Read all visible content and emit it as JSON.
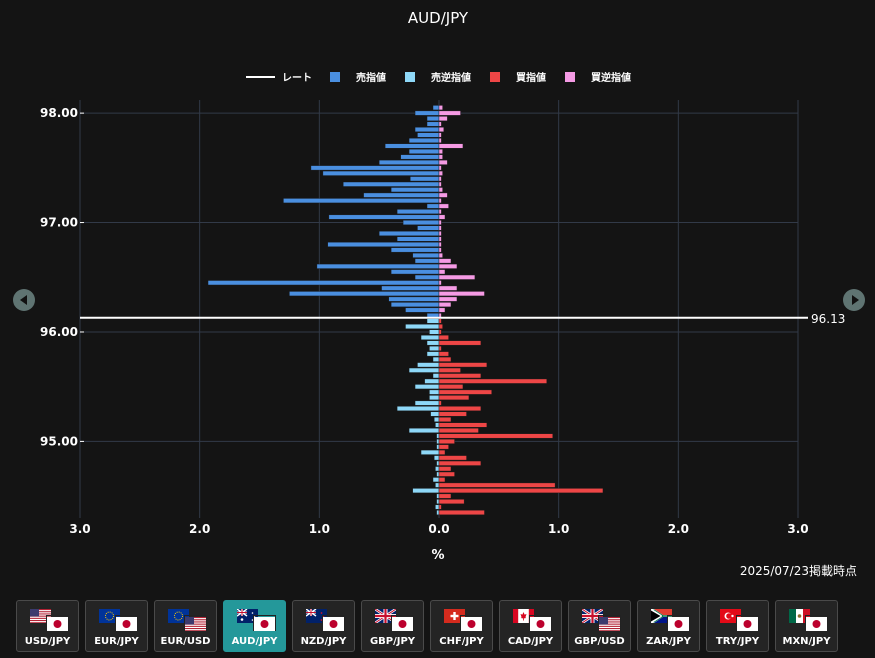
{
  "chart_data": {
    "type": "bar",
    "orientation": "horizontal",
    "title": "AUD/JPY",
    "xlabel": "%",
    "ylabel": "",
    "xlim": [
      -3.0,
      3.0
    ],
    "x_tick_labels": [
      "3.0",
      "2.0",
      "1.0",
      "0.0",
      "1.0",
      "2.0",
      "3.0"
    ],
    "x_tick_values": [
      -3,
      -2,
      -1,
      0,
      1,
      2,
      3
    ],
    "ylim": [
      94.3,
      98.12
    ],
    "y_tick_labels": [
      "98.00",
      "97.00",
      "96.00",
      "95.00"
    ],
    "y_tick_values": [
      98.0,
      97.0,
      96.0,
      95.0
    ],
    "grid": true,
    "legend_position": "top",
    "rate": {
      "name": "レート",
      "value": 96.13,
      "label": "96.13",
      "color": "#ffffff"
    },
    "series": [
      {
        "name": "売指値",
        "color": "#4a8fe0",
        "side": "left",
        "y": [
          98.05,
          98.0,
          97.95,
          97.9,
          97.85,
          97.8,
          97.75,
          97.7,
          97.65,
          97.6,
          97.55,
          97.5,
          97.45,
          97.4,
          97.35,
          97.3,
          97.25,
          97.2,
          97.15,
          97.1,
          97.05,
          97.0,
          96.95,
          96.9,
          96.85,
          96.8,
          96.75,
          96.7,
          96.65,
          96.6,
          96.55,
          96.5,
          96.45,
          96.4,
          96.35,
          96.3,
          96.25,
          96.2,
          96.15
        ],
        "values": [
          0.05,
          0.2,
          0.1,
          0.1,
          0.2,
          0.18,
          0.25,
          0.45,
          0.25,
          0.32,
          0.5,
          1.07,
          0.97,
          0.24,
          0.8,
          0.4,
          0.63,
          1.3,
          0.1,
          0.35,
          0.92,
          0.3,
          0.18,
          0.5,
          0.35,
          0.93,
          0.4,
          0.22,
          0.2,
          1.02,
          0.4,
          0.2,
          1.93,
          0.48,
          1.25,
          0.42,
          0.4,
          0.28,
          0.1
        ]
      },
      {
        "name": "売逆指値",
        "color": "#8ed8f8",
        "side": "left",
        "y": [
          96.1,
          96.05,
          96.0,
          95.95,
          95.9,
          95.85,
          95.8,
          95.75,
          95.7,
          95.65,
          95.6,
          95.55,
          95.5,
          95.45,
          95.4,
          95.35,
          95.3,
          95.25,
          95.2,
          95.15,
          95.1,
          95.05,
          95.0,
          94.95,
          94.9,
          94.85,
          94.8,
          94.75,
          94.7,
          94.65,
          94.6,
          94.55,
          94.5,
          94.45,
          94.4,
          94.35
        ],
        "values": [
          0.1,
          0.28,
          0.08,
          0.15,
          0.1,
          0.08,
          0.1,
          0.05,
          0.18,
          0.25,
          0.05,
          0.12,
          0.2,
          0.08,
          0.08,
          0.2,
          0.35,
          0.07,
          0.04,
          0.03,
          0.25,
          0.02,
          0.02,
          0.02,
          0.15,
          0.04,
          0.02,
          0.03,
          0.02,
          0.05,
          0.03,
          0.22,
          0.02,
          0.02,
          0.03,
          0.02
        ]
      },
      {
        "name": "買指値",
        "color": "#ee4646",
        "side": "right",
        "y": [
          96.1,
          96.05,
          96.0,
          95.95,
          95.9,
          95.85,
          95.8,
          95.75,
          95.7,
          95.65,
          95.6,
          95.55,
          95.5,
          95.45,
          95.4,
          95.35,
          95.3,
          95.25,
          95.2,
          95.15,
          95.1,
          95.05,
          95.0,
          94.95,
          94.9,
          94.85,
          94.8,
          94.75,
          94.7,
          94.65,
          94.6,
          94.55,
          94.5,
          94.45,
          94.4,
          94.35
        ],
        "values": [
          0.02,
          0.03,
          0.02,
          0.08,
          0.35,
          0.02,
          0.08,
          0.1,
          0.4,
          0.18,
          0.35,
          0.9,
          0.2,
          0.44,
          0.25,
          0.02,
          0.35,
          0.23,
          0.1,
          0.4,
          0.33,
          0.95,
          0.13,
          0.08,
          0.05,
          0.23,
          0.35,
          0.1,
          0.13,
          0.05,
          0.97,
          1.37,
          0.1,
          0.21,
          0.02,
          0.38
        ]
      },
      {
        "name": "買逆指値",
        "color": "#f59ae4",
        "side": "right",
        "y": [
          98.05,
          98.0,
          97.95,
          97.9,
          97.85,
          97.8,
          97.75,
          97.7,
          97.65,
          97.6,
          97.55,
          97.5,
          97.45,
          97.4,
          97.35,
          97.3,
          97.25,
          97.2,
          97.15,
          97.1,
          97.05,
          97.0,
          96.95,
          96.9,
          96.85,
          96.8,
          96.75,
          96.7,
          96.65,
          96.6,
          96.55,
          96.5,
          96.45,
          96.4,
          96.35,
          96.3,
          96.25,
          96.2,
          96.15
        ],
        "values": [
          0.03,
          0.18,
          0.07,
          0.02,
          0.04,
          0.02,
          0.02,
          0.2,
          0.03,
          0.03,
          0.07,
          0.02,
          0.03,
          0.02,
          0.02,
          0.03,
          0.07,
          0.02,
          0.08,
          0.02,
          0.05,
          0.02,
          0.02,
          0.02,
          0.02,
          0.02,
          0.02,
          0.03,
          0.1,
          0.15,
          0.05,
          0.3,
          0.02,
          0.15,
          0.38,
          0.15,
          0.1,
          0.05,
          0.02
        ]
      }
    ]
  },
  "timestamp": "2025/07/23掲載時点",
  "pairs": [
    {
      "label": "USD/JPY",
      "flag1": "flag-us",
      "flag2": "flag-jp",
      "active": false
    },
    {
      "label": "EUR/JPY",
      "flag1": "flag-eu",
      "flag2": "flag-jp",
      "active": false
    },
    {
      "label": "EUR/USD",
      "flag1": "flag-eu",
      "flag2": "flag-us",
      "active": false
    },
    {
      "label": "AUD/JPY",
      "flag1": "flag-au",
      "flag2": "flag-jp",
      "active": true
    },
    {
      "label": "NZD/JPY",
      "flag1": "flag-nz",
      "flag2": "flag-jp",
      "active": false
    },
    {
      "label": "GBP/JPY",
      "flag1": "flag-gb",
      "flag2": "flag-jp",
      "active": false
    },
    {
      "label": "CHF/JPY",
      "flag1": "flag-ch",
      "flag2": "flag-jp",
      "active": false
    },
    {
      "label": "CAD/JPY",
      "flag1": "flag-ca",
      "flag2": "flag-jp",
      "active": false
    },
    {
      "label": "GBP/USD",
      "flag1": "flag-gb",
      "flag2": "flag-us",
      "active": false
    },
    {
      "label": "ZAR/JPY",
      "flag1": "flag-za",
      "flag2": "flag-jp",
      "active": false
    },
    {
      "label": "TRY/JPY",
      "flag1": "flag-tr",
      "flag2": "flag-jp",
      "active": false
    },
    {
      "label": "MXN/JPY",
      "flag1": "flag-mx",
      "flag2": "flag-jp",
      "active": false
    }
  ],
  "nav": {
    "prev_icon": "chevron-left-icon",
    "next_icon": "chevron-right-icon"
  }
}
